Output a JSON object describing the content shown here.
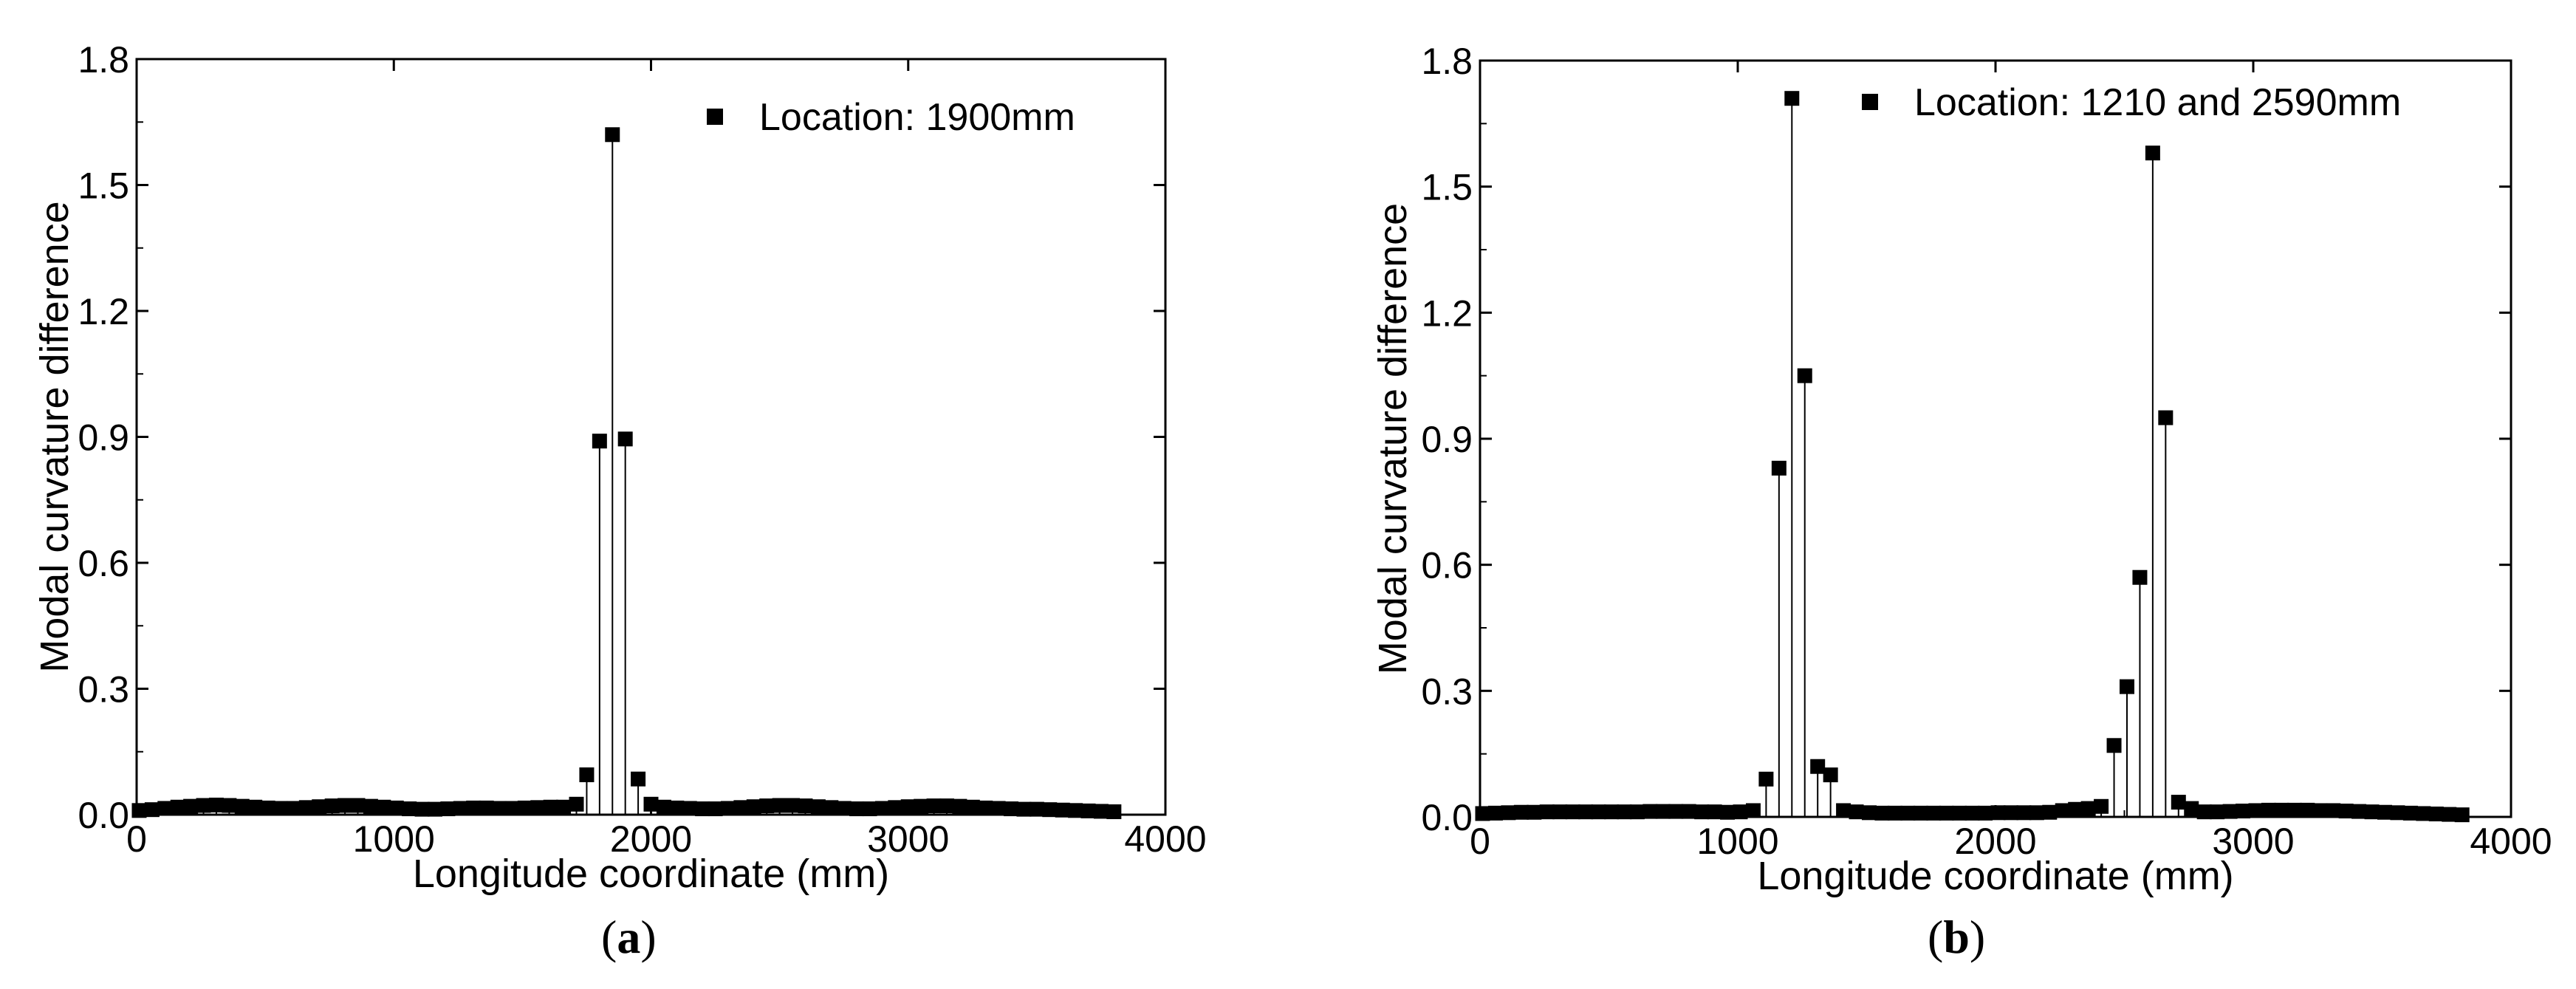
{
  "chart_data": [
    {
      "type": "scatter",
      "panel_label": "a",
      "xlabel": "Longitude coordinate (mm)",
      "ylabel": "Modal curvature difference",
      "xlim": [
        0,
        4000
      ],
      "ylim": [
        0,
        1.8
      ],
      "xticks": [
        "0",
        "1000",
        "2000",
        "3000",
        "4000"
      ],
      "yticks": [
        "0.0",
        "0.3",
        "0.6",
        "0.9",
        "1.2",
        "1.5",
        "1.8"
      ],
      "legend": {
        "label": "Location: 1900mm",
        "position": "top-right"
      },
      "markers": "filled-square-with-drop-lines",
      "series": [
        {
          "x": [
            10,
            60,
            110,
            160,
            210,
            260,
            310,
            360,
            410,
            460,
            510,
            560,
            610,
            660,
            710,
            760,
            810,
            860,
            910,
            960,
            1010,
            1060,
            1110,
            1160,
            1210,
            1260,
            1310,
            1360,
            1410,
            1460,
            1510,
            1560,
            1610,
            1660,
            1710,
            1750,
            1800,
            1850,
            1900,
            1950,
            2000,
            2050,
            2100,
            2150,
            2200,
            2250,
            2300,
            2350,
            2400,
            2450,
            2500,
            2550,
            2600,
            2650,
            2700,
            2750,
            2800,
            2850,
            2900,
            2950,
            3000,
            3050,
            3100,
            3150,
            3200,
            3250,
            3300,
            3350,
            3400,
            3450,
            3500,
            3550,
            3600,
            3650,
            3700,
            3750,
            3800
          ],
          "y": [
            0.01,
            0.012,
            0.015,
            0.018,
            0.02,
            0.022,
            0.023,
            0.022,
            0.02,
            0.018,
            0.016,
            0.015,
            0.015,
            0.017,
            0.019,
            0.021,
            0.022,
            0.022,
            0.02,
            0.018,
            0.016,
            0.014,
            0.013,
            0.013,
            0.014,
            0.015,
            0.016,
            0.016,
            0.015,
            0.015,
            0.016,
            0.017,
            0.018,
            0.018,
            0.025,
            0.095,
            0.89,
            1.62,
            0.895,
            0.085,
            0.025,
            0.018,
            0.016,
            0.015,
            0.014,
            0.014,
            0.015,
            0.017,
            0.019,
            0.021,
            0.022,
            0.022,
            0.021,
            0.019,
            0.017,
            0.015,
            0.014,
            0.014,
            0.015,
            0.017,
            0.019,
            0.02,
            0.021,
            0.021,
            0.02,
            0.018,
            0.016,
            0.015,
            0.014,
            0.013,
            0.013,
            0.012,
            0.011,
            0.01,
            0.009,
            0.008,
            0.007
          ]
        }
      ]
    },
    {
      "type": "scatter",
      "panel_label": "b",
      "xlabel": "Longitude coordinate (mm)",
      "ylabel": "Modal curvature difference",
      "xlim": [
        0,
        4000
      ],
      "ylim": [
        0,
        1.8
      ],
      "xticks": [
        "0",
        "1000",
        "2000",
        "3000",
        "4000"
      ],
      "yticks": [
        "0.0",
        "0.3",
        "0.6",
        "0.9",
        "1.2",
        "1.5",
        "1.8"
      ],
      "legend": {
        "label": "Location: 1210 and 2590mm",
        "position": "top-right"
      },
      "markers": "filled-square-with-drop-lines",
      "series": [
        {
          "x": [
            10,
            60,
            110,
            160,
            210,
            260,
            310,
            360,
            410,
            460,
            510,
            560,
            610,
            660,
            710,
            760,
            810,
            860,
            910,
            960,
            1010,
            1060,
            1110,
            1160,
            1210,
            1260,
            1310,
            1360,
            1410,
            1460,
            1510,
            1560,
            1610,
            1660,
            1710,
            1760,
            1810,
            1860,
            1910,
            1960,
            2010,
            2060,
            2110,
            2160,
            2210,
            2260,
            2310,
            2360,
            2410,
            2460,
            2510,
            2560,
            2610,
            2660,
            2710,
            2760,
            2810,
            2860,
            2910,
            2960,
            3010,
            3060,
            3110,
            3160,
            3210,
            3260,
            3310,
            3360,
            3410,
            3460,
            3510,
            3560,
            3610,
            3660,
            3710,
            3760,
            3810
          ],
          "y": [
            0.008,
            0.009,
            0.01,
            0.011,
            0.011,
            0.012,
            0.012,
            0.012,
            0.012,
            0.012,
            0.012,
            0.012,
            0.012,
            0.013,
            0.013,
            0.013,
            0.013,
            0.012,
            0.012,
            0.011,
            0.012,
            0.015,
            0.09,
            0.83,
            1.71,
            1.05,
            0.12,
            0.1,
            0.015,
            0.012,
            0.01,
            0.009,
            0.009,
            0.009,
            0.009,
            0.009,
            0.009,
            0.009,
            0.009,
            0.009,
            0.01,
            0.01,
            0.01,
            0.01,
            0.011,
            0.015,
            0.018,
            0.02,
            0.025,
            0.17,
            0.31,
            0.57,
            1.58,
            0.95,
            0.035,
            0.02,
            0.012,
            0.012,
            0.013,
            0.014,
            0.015,
            0.016,
            0.016,
            0.016,
            0.016,
            0.015,
            0.015,
            0.014,
            0.013,
            0.012,
            0.011,
            0.01,
            0.009,
            0.008,
            0.007,
            0.006,
            0.005
          ]
        }
      ]
    }
  ]
}
